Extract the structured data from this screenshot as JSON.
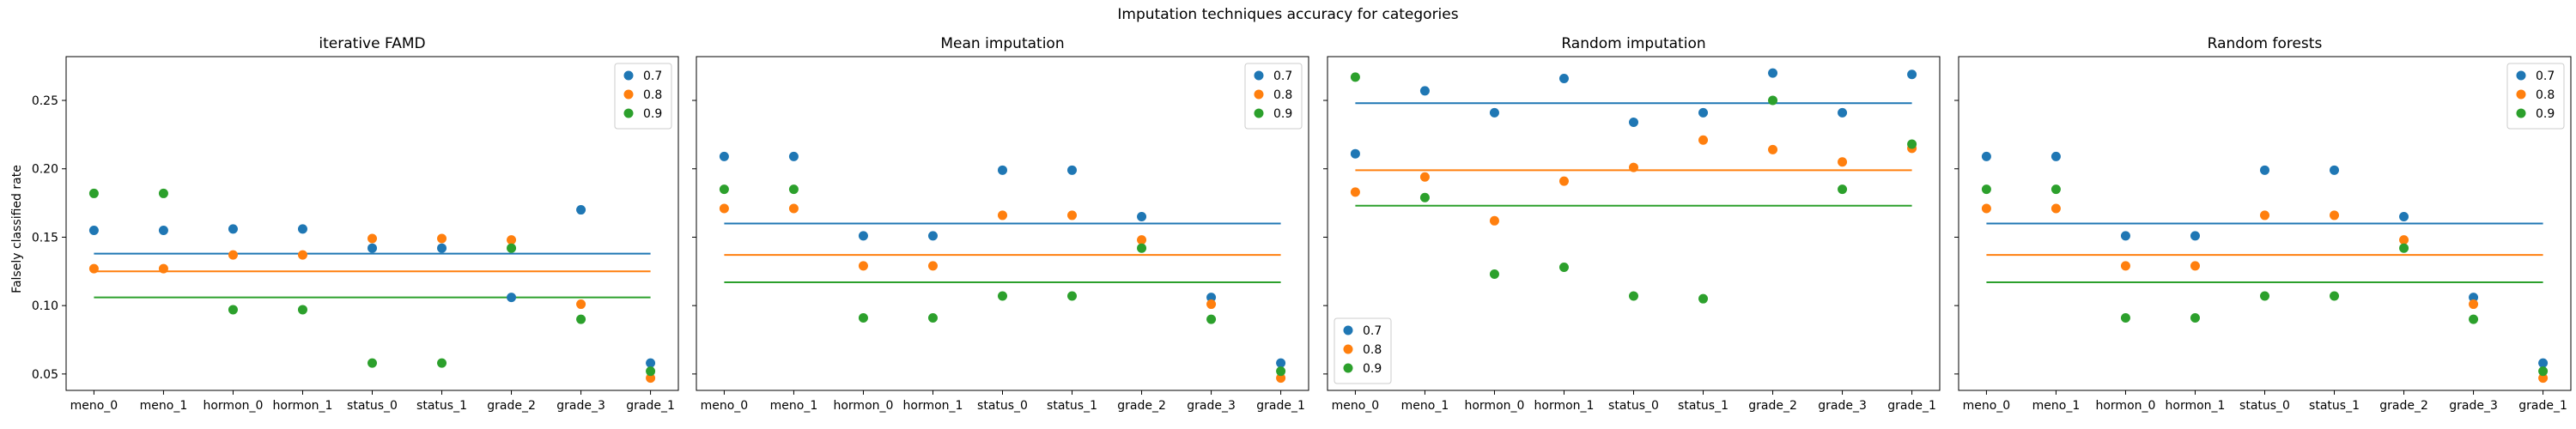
{
  "figure": {
    "title": "Imputation techniques accuracy for categories",
    "ylabel": "Falsely classified rate"
  },
  "colors": {
    "0.7": "#1f77b4",
    "0.8": "#ff7f0e",
    "0.9": "#2ca02c"
  },
  "chart_data": [
    {
      "type": "scatter",
      "title": "iterative FAMD",
      "categories": [
        "meno_0",
        "meno_1",
        "hormon_0",
        "hormon_1",
        "status_0",
        "status_1",
        "grade_2",
        "grade_3",
        "grade_1"
      ],
      "ylim": [
        0.038,
        0.282
      ],
      "yticks": [
        0.05,
        0.1,
        0.15,
        0.2,
        0.25
      ],
      "legend": "top-right",
      "series": [
        {
          "name": "0.7",
          "values": [
            0.155,
            0.155,
            0.156,
            0.156,
            0.142,
            0.142,
            0.106,
            0.17,
            0.058
          ],
          "mean": 0.138
        },
        {
          "name": "0.8",
          "values": [
            0.127,
            0.127,
            0.137,
            0.137,
            0.149,
            0.149,
            0.148,
            0.101,
            0.047
          ],
          "mean": 0.125
        },
        {
          "name": "0.9",
          "values": [
            0.182,
            0.182,
            0.097,
            0.097,
            0.058,
            0.058,
            0.142,
            0.09,
            0.052
          ],
          "mean": 0.106
        }
      ]
    },
    {
      "type": "scatter",
      "title": "Mean imputation",
      "categories": [
        "meno_0",
        "meno_1",
        "hormon_0",
        "hormon_1",
        "status_0",
        "status_1",
        "grade_2",
        "grade_3",
        "grade_1"
      ],
      "ylim": [
        0.038,
        0.282
      ],
      "yticks": [
        0.05,
        0.1,
        0.15,
        0.2,
        0.25
      ],
      "legend": "top-right",
      "series": [
        {
          "name": "0.7",
          "values": [
            0.209,
            0.209,
            0.151,
            0.151,
            0.199,
            0.199,
            0.165,
            0.106,
            0.058
          ],
          "mean": 0.16
        },
        {
          "name": "0.8",
          "values": [
            0.171,
            0.171,
            0.129,
            0.129,
            0.166,
            0.166,
            0.148,
            0.101,
            0.047
          ],
          "mean": 0.137
        },
        {
          "name": "0.9",
          "values": [
            0.185,
            0.185,
            0.091,
            0.091,
            0.107,
            0.107,
            0.142,
            0.09,
            0.052
          ],
          "mean": 0.117
        }
      ]
    },
    {
      "type": "scatter",
      "title": "Random imputation",
      "categories": [
        "meno_0",
        "meno_1",
        "hormon_0",
        "hormon_1",
        "status_0",
        "status_1",
        "grade_2",
        "grade_3",
        "grade_1"
      ],
      "ylim": [
        0.038,
        0.282
      ],
      "yticks": [
        0.05,
        0.1,
        0.15,
        0.2,
        0.25
      ],
      "legend": "bottom-left",
      "series": [
        {
          "name": "0.7",
          "values": [
            0.211,
            0.257,
            0.241,
            0.266,
            0.234,
            0.241,
            0.27,
            0.241,
            0.269
          ],
          "mean": 0.248
        },
        {
          "name": "0.8",
          "values": [
            0.183,
            0.194,
            0.162,
            0.191,
            0.201,
            0.221,
            0.214,
            0.205,
            0.215
          ],
          "mean": 0.199
        },
        {
          "name": "0.9",
          "values": [
            0.267,
            0.179,
            0.123,
            0.128,
            0.107,
            0.105,
            0.25,
            0.185,
            0.218
          ],
          "mean": 0.173
        }
      ]
    },
    {
      "type": "scatter",
      "title": "Random forests",
      "categories": [
        "meno_0",
        "meno_1",
        "hormon_0",
        "hormon_1",
        "status_0",
        "status_1",
        "grade_2",
        "grade_3",
        "grade_1"
      ],
      "ylim": [
        0.038,
        0.282
      ],
      "yticks": [
        0.05,
        0.1,
        0.15,
        0.2,
        0.25
      ],
      "legend": "top-right",
      "series": [
        {
          "name": "0.7",
          "values": [
            0.209,
            0.209,
            0.151,
            0.151,
            0.199,
            0.199,
            0.165,
            0.106,
            0.058
          ],
          "mean": 0.16
        },
        {
          "name": "0.8",
          "values": [
            0.171,
            0.171,
            0.129,
            0.129,
            0.166,
            0.166,
            0.148,
            0.101,
            0.047
          ],
          "mean": 0.137
        },
        {
          "name": "0.9",
          "values": [
            0.185,
            0.185,
            0.091,
            0.091,
            0.107,
            0.107,
            0.142,
            0.09,
            0.052
          ],
          "mean": 0.117
        }
      ]
    }
  ]
}
